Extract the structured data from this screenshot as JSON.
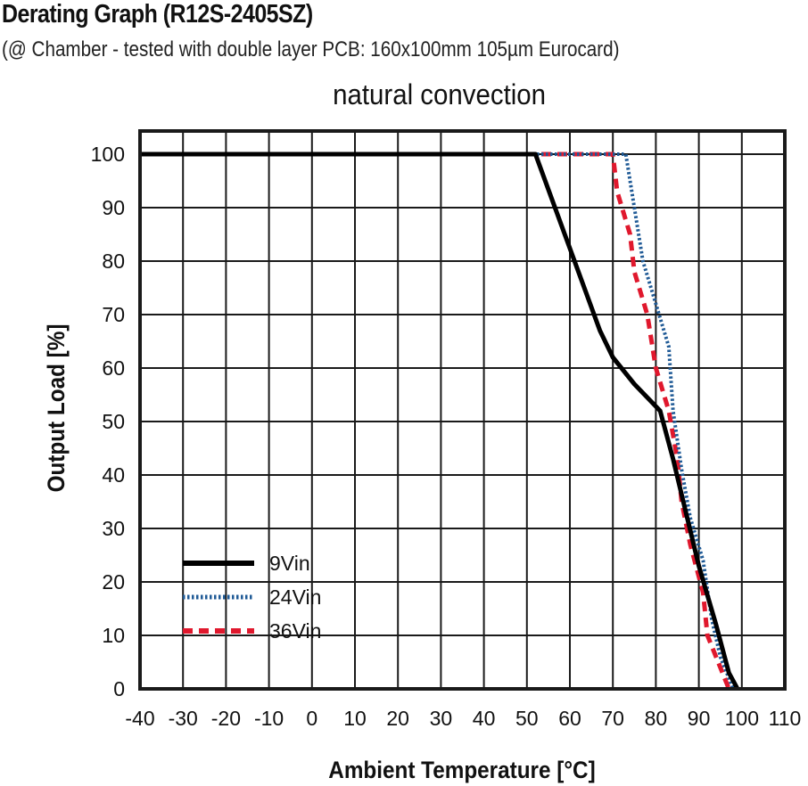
{
  "header": {
    "title": "Derating Graph (R12S-2405SZ)",
    "subtitle": "(@ Chamber - tested with double layer PCB: 160x100mm 105µm Eurocard)"
  },
  "chart_data": {
    "type": "line",
    "title": "natural convection",
    "xlabel": "Ambient Temperature [°C]",
    "ylabel": "Output Load [%]",
    "xlim": [
      -40,
      110
    ],
    "ylim": [
      0,
      100
    ],
    "x_ticks": [
      "-40",
      "-30",
      "-20",
      "-10",
      "0",
      "10",
      "20",
      "30",
      "40",
      "50",
      "60",
      "70",
      "80",
      "90",
      "100",
      "110"
    ],
    "y_ticks": [
      "0",
      "10",
      "20",
      "30",
      "40",
      "50",
      "60",
      "70",
      "80",
      "90",
      "100"
    ],
    "grid": true,
    "legend_position": "bottom-left",
    "series": [
      {
        "name": "9Vin",
        "style": "solid",
        "color": "#000000",
        "points": [
          [
            -40,
            100
          ],
          [
            52,
            100
          ],
          [
            57,
            89
          ],
          [
            62,
            78
          ],
          [
            67,
            67
          ],
          [
            70,
            62
          ],
          [
            75,
            57
          ],
          [
            81,
            52
          ],
          [
            84,
            43
          ],
          [
            87,
            33
          ],
          [
            90,
            23
          ],
          [
            94,
            12
          ],
          [
            97,
            3
          ],
          [
            99,
            0
          ]
        ]
      },
      {
        "name": "24Vin",
        "style": "dotted",
        "color": "#1f5a96",
        "points": [
          [
            -40,
            100
          ],
          [
            73,
            100
          ],
          [
            75,
            90
          ],
          [
            77,
            80
          ],
          [
            80,
            72
          ],
          [
            83,
            64
          ],
          [
            84,
            52
          ],
          [
            86,
            41
          ],
          [
            88,
            32
          ],
          [
            91,
            24
          ],
          [
            93,
            13
          ],
          [
            95,
            6
          ],
          [
            97,
            2
          ],
          [
            98,
            0
          ]
        ]
      },
      {
        "name": "36Vin",
        "style": "dashed",
        "color": "#e0182d",
        "points": [
          [
            -40,
            100
          ],
          [
            70,
            100
          ],
          [
            71,
            93
          ],
          [
            74,
            85
          ],
          [
            75,
            78
          ],
          [
            78,
            70
          ],
          [
            80,
            60
          ],
          [
            83,
            52
          ],
          [
            85,
            43
          ],
          [
            86,
            35
          ],
          [
            88,
            27
          ],
          [
            91,
            18
          ],
          [
            92,
            10
          ],
          [
            95,
            4
          ],
          [
            97,
            0
          ]
        ]
      }
    ]
  }
}
